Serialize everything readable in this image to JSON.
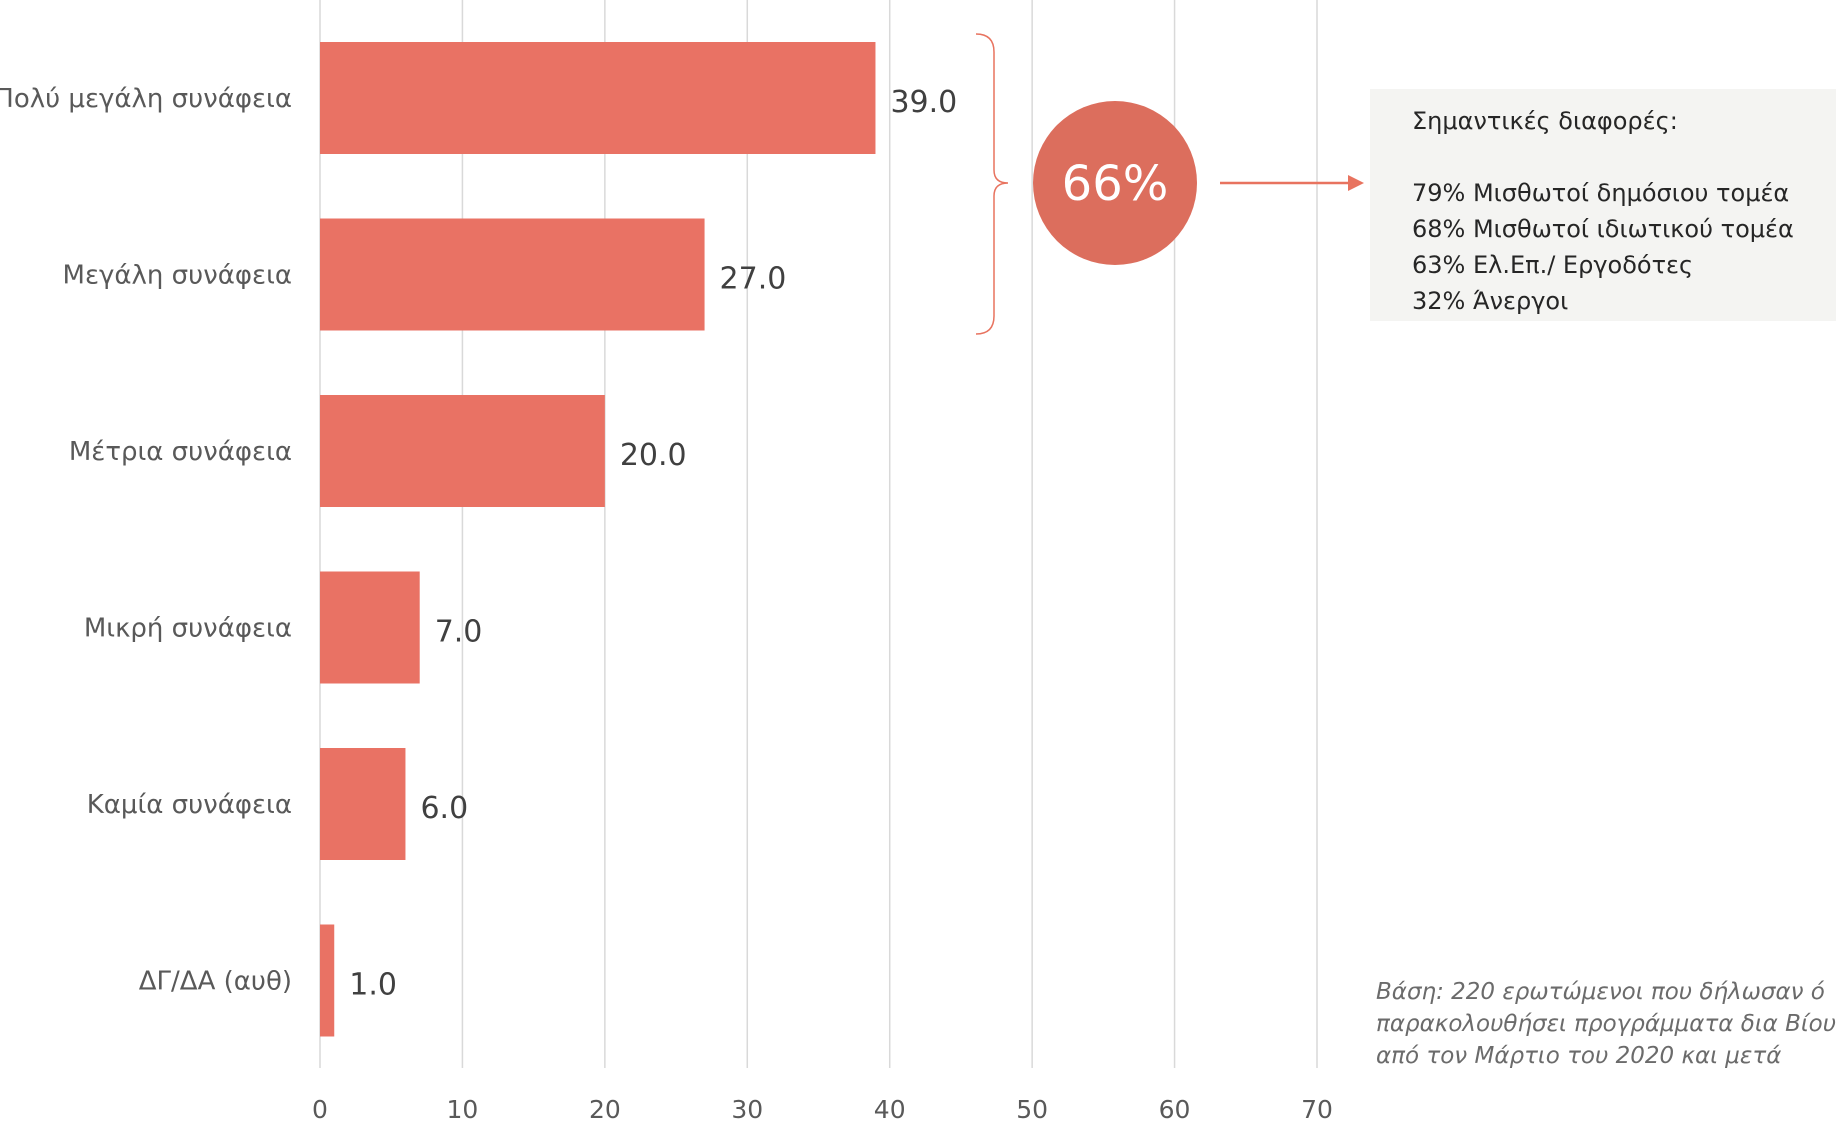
{
  "chart_data": {
    "type": "bar",
    "orientation": "horizontal",
    "categories": [
      "Πολύ μεγάλη συνάφεια",
      "Μεγάλη συνάφεια",
      "Μέτρια συνάφεια",
      "Μικρή συνάφεια",
      "Καμία συνάφεια",
      "ΔΓ/ΔΑ (αυθ)"
    ],
    "values": [
      39.0,
      27.0,
      20.0,
      7.0,
      6.0,
      1.0
    ],
    "value_labels": [
      "39.0",
      "27.0",
      "20.0",
      "7.0",
      "6.0",
      "1.0"
    ],
    "xlim": [
      0,
      70
    ],
    "xticks": [
      0,
      10,
      20,
      30,
      40,
      50,
      60,
      70
    ],
    "xtick_labels": [
      "0",
      "10",
      "20",
      "30",
      "40",
      "50",
      "60",
      "70"
    ],
    "grid": true,
    "bar_color": "#e97264",
    "title": "",
    "xlabel": "",
    "ylabel": ""
  },
  "summary": {
    "bubble_label": "66%",
    "bubble_color": "#dc6e5d",
    "bracket_color": "#e8735f"
  },
  "differences": {
    "title": "Σημαντικές διαφορές:",
    "items": [
      "79% Μισθωτοί δημόσιου τομέα",
      "68% Μισθωτοί ιδιωτικού τομέα",
      "63% Ελ.Επ./ Εργοδότες",
      "32% Άνεργοι"
    ]
  },
  "base_note": {
    "lines": [
      "Βάση: 220 ερωτώμενοι που δήλωσαν ό",
      "παρακολουθήσει προγράμματα δια Βίου",
      "από τον Μάρτιο του 2020 και μετά"
    ]
  }
}
